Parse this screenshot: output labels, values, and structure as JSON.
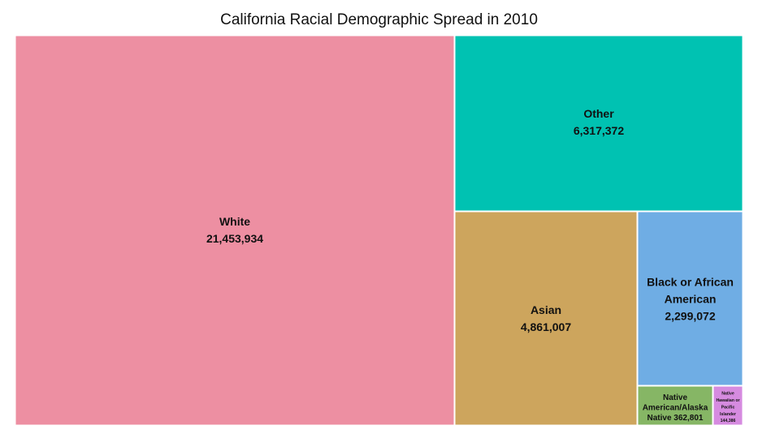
{
  "chart_data": {
    "type": "treemap",
    "title": "California Racial Demographic Spread in 2010",
    "tiles": [
      {
        "name": "White",
        "value": 21453934,
        "value_label": "21,453,934",
        "color": "#ed8fa2",
        "label_lines": [
          "White",
          "21,453,934"
        ]
      },
      {
        "name": "Other",
        "value": 6317372,
        "value_label": "6,317,372",
        "color": "#00c2b2",
        "label_lines": [
          "Other",
          "6,317,372"
        ]
      },
      {
        "name": "Asian",
        "value": 4861007,
        "value_label": "4,861,007",
        "color": "#cda55d",
        "label_lines": [
          "Asian",
          "4,861,007"
        ]
      },
      {
        "name": "Black or African American",
        "value": 2299072,
        "value_label": "2,299,072",
        "color": "#6fade4",
        "label_lines": [
          "Black or African",
          "American",
          "2,299,072"
        ]
      },
      {
        "name": "Native American/Alaska Native",
        "value": 362801,
        "value_label": "362,801",
        "color": "#86b665",
        "label_lines": [
          "Native",
          "American/Alaska",
          "Native 362,801"
        ]
      },
      {
        "name": "Native Hawaiian or Pacific Islander",
        "value": 144386,
        "value_label": "144,386",
        "color": "#d68be0",
        "label_lines": [
          "Native",
          "Hawaiian or",
          "Pacific",
          "Islander",
          "144,386"
        ]
      }
    ]
  }
}
